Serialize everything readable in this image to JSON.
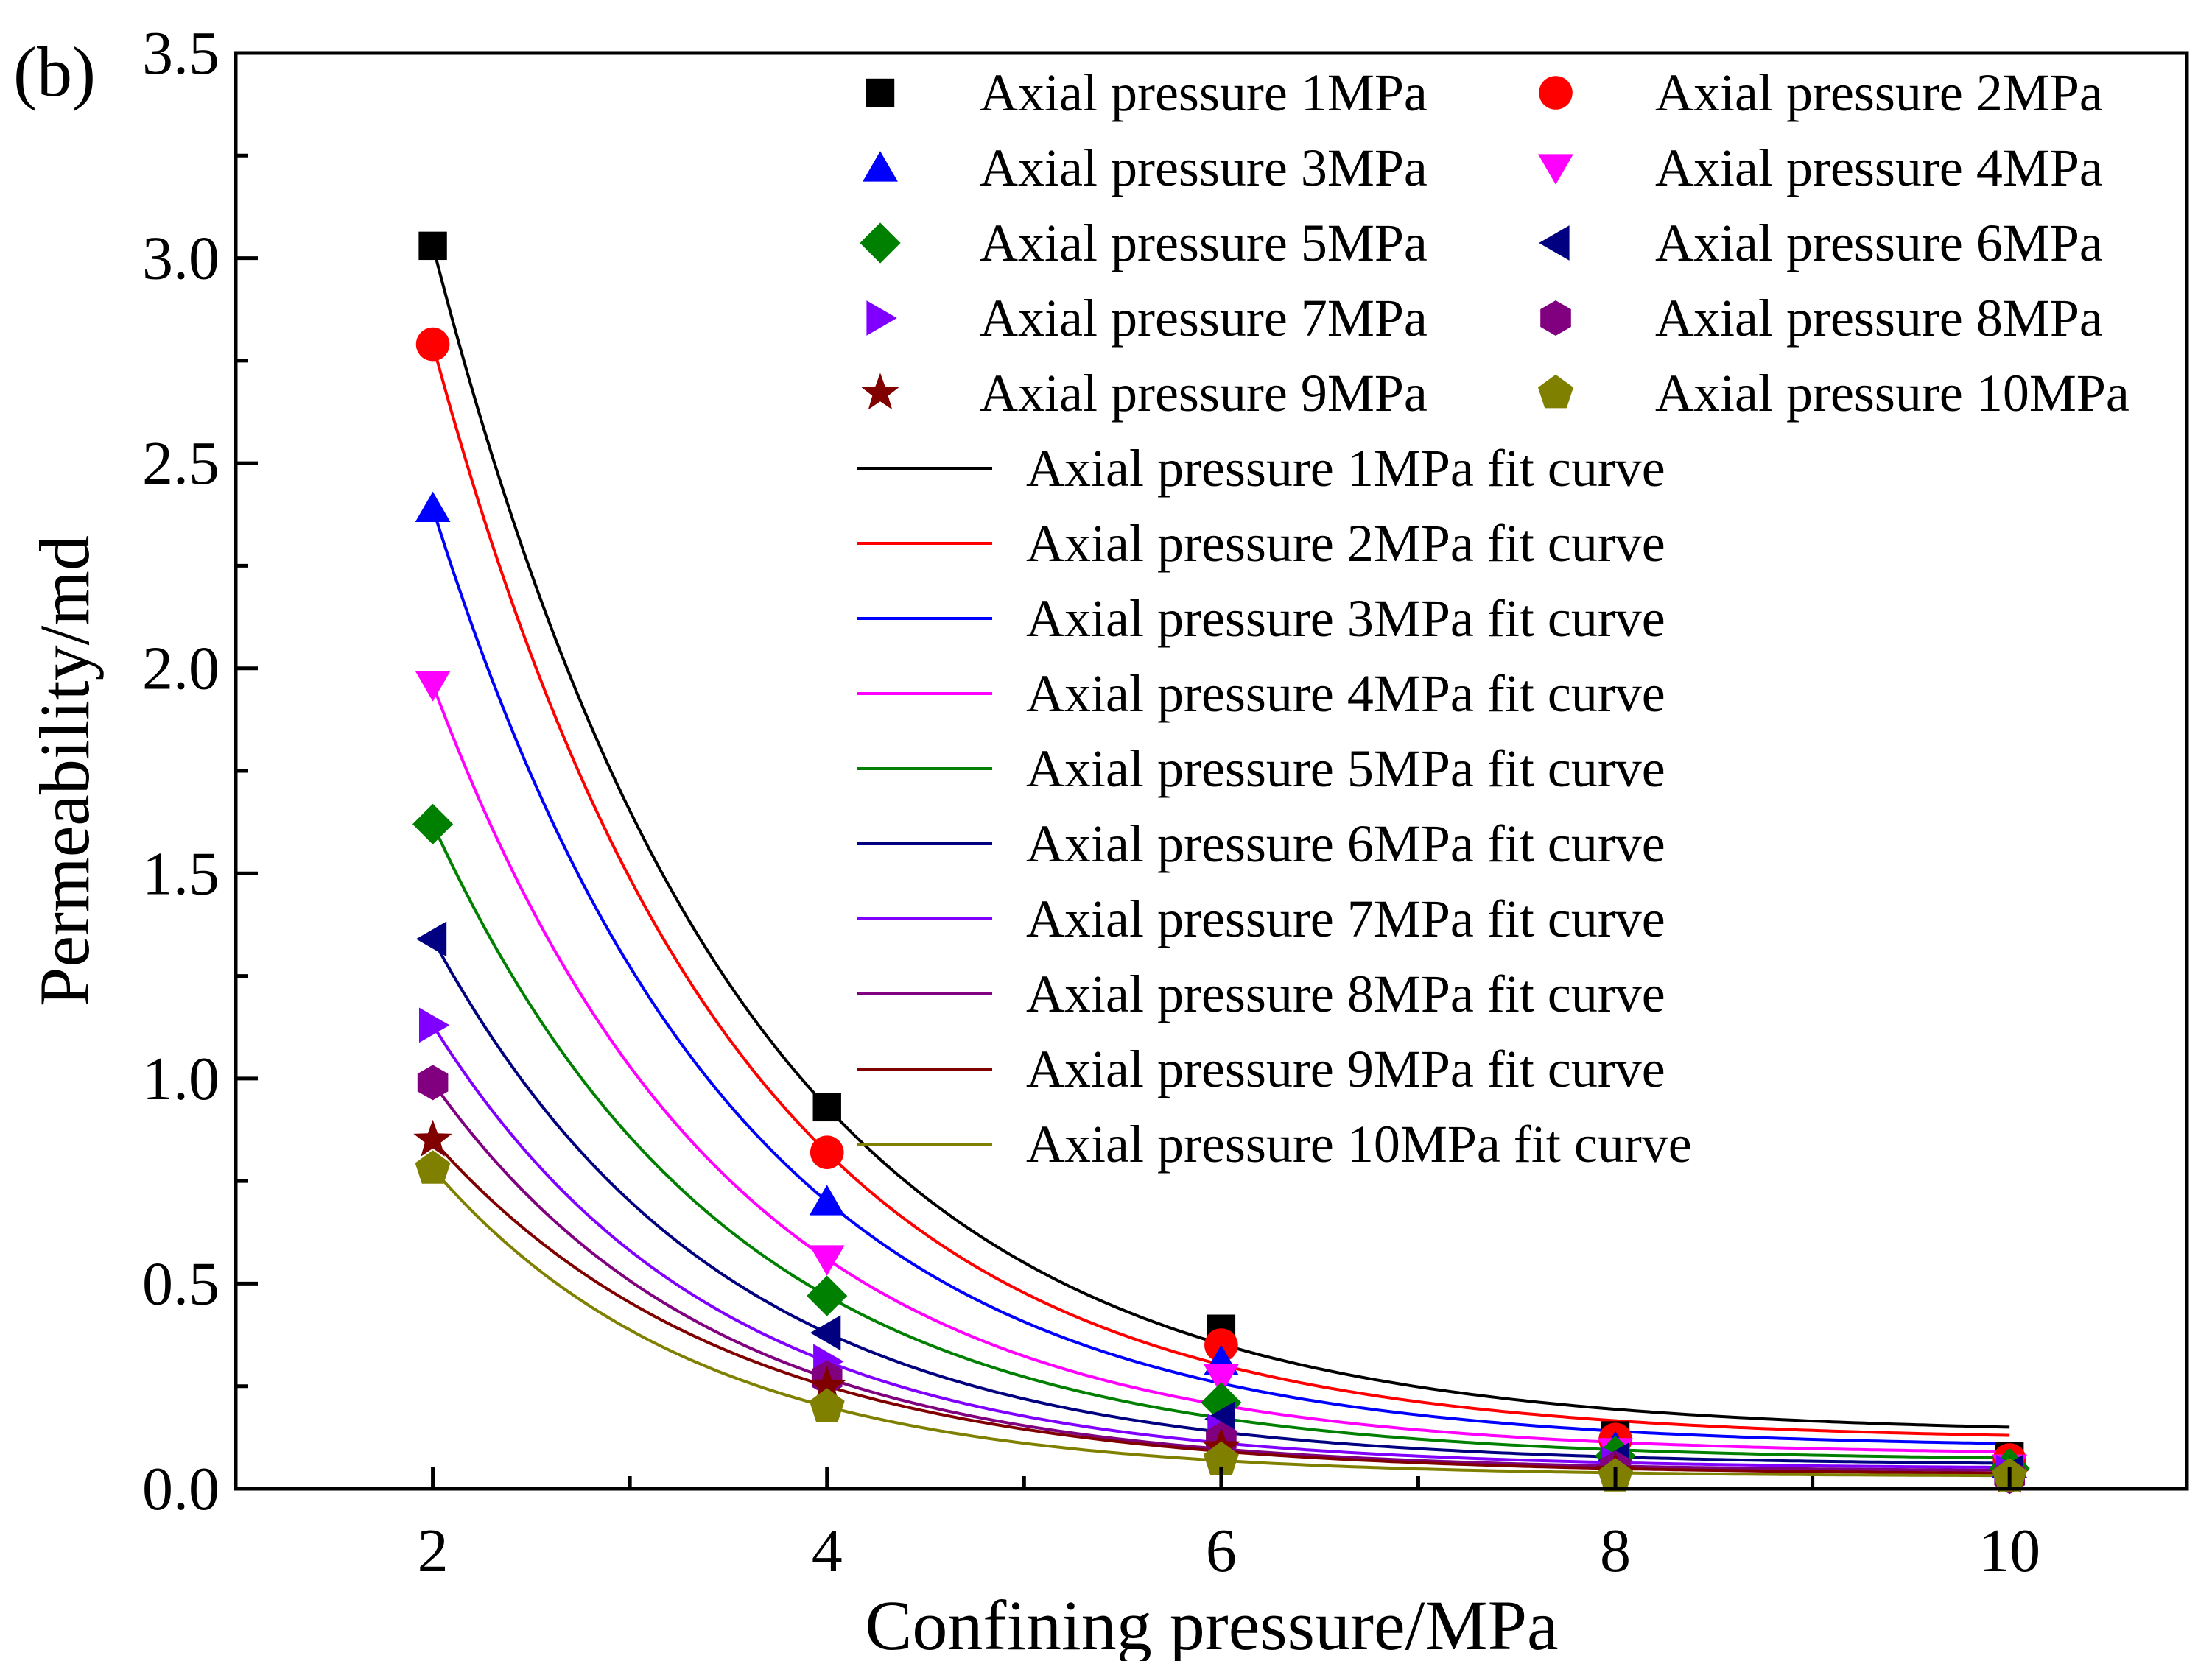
{
  "panel_label": "(b)",
  "chart_data": {
    "type": "scatter",
    "title": "",
    "xlabel": "Confining pressure/MPa",
    "ylabel": "Permeability/md",
    "xlim": [
      1.0,
      10.9
    ],
    "ylim": [
      0.0,
      3.5
    ],
    "xticks": [
      2,
      4,
      6,
      8,
      10
    ],
    "xtick_labels": [
      "2",
      "4",
      "6",
      "8",
      "10"
    ],
    "yticks": [
      0.0,
      0.5,
      1.0,
      1.5,
      2.0,
      2.5,
      3.0,
      3.5
    ],
    "ytick_labels": [
      "0.0",
      "0.5",
      "1.0",
      "1.5",
      "2.0",
      "2.5",
      "3.0",
      "3.5"
    ],
    "grid": false,
    "legend_position": "top-right",
    "x": [
      2,
      4,
      6,
      8,
      10
    ],
    "series": [
      {
        "name": "Axial pressure 1MPa",
        "fit_name": "Axial pressure 1MPa fit curve",
        "color": "#000000",
        "marker": "square",
        "values": [
          3.03,
          0.93,
          0.39,
          0.13,
          0.08
        ],
        "fit_end": 0.15
      },
      {
        "name": "Axial pressure 2MPa",
        "fit_name": "Axial pressure 2MPa fit curve",
        "color": "#ff0000",
        "marker": "circle",
        "values": [
          2.79,
          0.82,
          0.35,
          0.12,
          0.07
        ],
        "fit_end": 0.13
      },
      {
        "name": "Axial pressure 3MPa",
        "fit_name": "Axial pressure 3MPa fit curve",
        "color": "#0000ff",
        "marker": "triangle-up",
        "values": [
          2.39,
          0.7,
          0.31,
          0.1,
          0.06
        ],
        "fit_end": 0.11
      },
      {
        "name": "Axial pressure 4MPa",
        "fit_name": "Axial pressure 4MPa fit curve",
        "color": "#ff00ff",
        "marker": "triangle-down",
        "values": [
          1.96,
          0.56,
          0.27,
          0.09,
          0.05
        ],
        "fit_end": 0.09
      },
      {
        "name": "Axial pressure 5MPa",
        "fit_name": "Axial pressure 5MPa fit curve",
        "color": "#008000",
        "marker": "diamond",
        "values": [
          1.62,
          0.47,
          0.21,
          0.08,
          0.05
        ],
        "fit_end": 0.075
      },
      {
        "name": "Axial pressure 6MPa",
        "fit_name": "Axial pressure 6MPa fit curve",
        "color": "#000080",
        "marker": "triangle-left",
        "values": [
          1.34,
          0.38,
          0.17,
          0.07,
          0.04
        ],
        "fit_end": 0.062
      },
      {
        "name": "Axial pressure 7MPa",
        "fit_name": "Axial pressure 7MPa fit curve",
        "color": "#8000ff",
        "marker": "triangle-right",
        "values": [
          1.13,
          0.31,
          0.14,
          0.06,
          0.04
        ],
        "fit_end": 0.052
      },
      {
        "name": "Axial pressure 8MPa",
        "fit_name": "Axial pressure 8MPa fit curve",
        "color": "#800080",
        "marker": "hexagon",
        "values": [
          0.99,
          0.27,
          0.12,
          0.05,
          0.03
        ],
        "fit_end": 0.045
      },
      {
        "name": "Axial pressure 9MPa",
        "fit_name": "Axial pressure 9MPa fit curve",
        "color": "#800000",
        "marker": "star",
        "values": [
          0.85,
          0.25,
          0.1,
          0.04,
          0.03
        ],
        "fit_end": 0.038
      },
      {
        "name": "Axial pressure 10MPa",
        "fit_name": "Axial pressure 10MPa fit curve",
        "color": "#808000",
        "marker": "pentagon",
        "values": [
          0.78,
          0.2,
          0.07,
          0.03,
          0.03
        ],
        "fit_end": 0.032
      }
    ]
  }
}
